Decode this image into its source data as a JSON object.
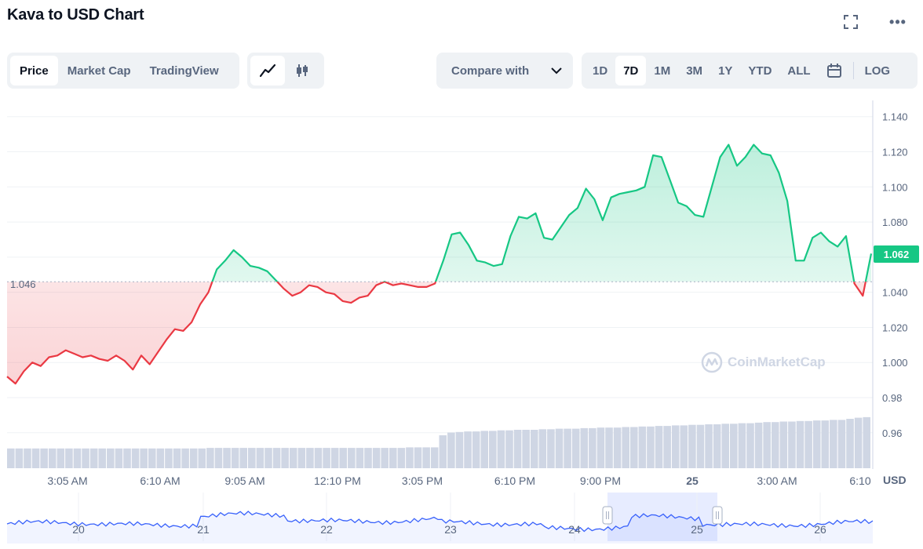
{
  "header": {
    "title": "Kava to USD Chart"
  },
  "icons": {
    "fullscreen": "fullscreen-icon",
    "more": "more-icon",
    "line": "line-chart-icon",
    "candle": "candlestick-icon",
    "chevron": "chevron-down-icon",
    "calendar": "calendar-icon"
  },
  "toolbar": {
    "views": [
      "Price",
      "Market Cap",
      "TradingView"
    ],
    "active_view": "Price",
    "compare_label": "Compare with",
    "ranges": [
      "1D",
      "7D",
      "1M",
      "3M",
      "1Y",
      "YTD",
      "ALL"
    ],
    "active_range": "7D",
    "log_label": "LOG",
    "more_glyph": "•••"
  },
  "watermark": "CoinMarketCap",
  "currency": "USD",
  "colors": {
    "up": "#16c784",
    "down": "#ea3943",
    "volume": "#cfd6e4",
    "navigator": "#3861fb"
  },
  "chart_data": {
    "type": "line",
    "reference_price": "1.046",
    "last_price": "1.062",
    "y_ticks": [
      "1.140",
      "1.120",
      "1.100",
      "1.080",
      "1.060",
      "1.040",
      "1.020",
      "1.000",
      "0.98",
      "0.96"
    ],
    "ylim": [
      0.955,
      1.143
    ],
    "x_tick_labels": [
      "3:05 AM",
      "6:10 AM",
      "9:05 AM",
      "12:10 PM",
      "3:05 PM",
      "6:10 PM",
      "9:00 PM",
      "25",
      "3:00 AM",
      "6:10"
    ],
    "navigator_labels": [
      "20",
      "21",
      "22",
      "23",
      "24",
      "25",
      "26"
    ],
    "price_series": [
      0.992,
      0.988,
      0.995,
      1.0,
      0.998,
      1.003,
      1.004,
      1.007,
      1.005,
      1.003,
      1.004,
      1.002,
      1.001,
      1.004,
      1.001,
      0.996,
      1.004,
      0.999,
      1.006,
      1.013,
      1.019,
      1.018,
      1.023,
      1.033,
      1.04,
      1.053,
      1.058,
      1.064,
      1.06,
      1.055,
      1.054,
      1.052,
      1.047,
      1.042,
      1.038,
      1.04,
      1.044,
      1.043,
      1.04,
      1.039,
      1.035,
      1.034,
      1.037,
      1.038,
      1.044,
      1.046,
      1.044,
      1.045,
      1.044,
      1.043,
      1.043,
      1.045,
      1.058,
      1.073,
      1.074,
      1.067,
      1.058,
      1.057,
      1.055,
      1.056,
      1.072,
      1.083,
      1.082,
      1.085,
      1.071,
      1.07,
      1.077,
      1.084,
      1.088,
      1.099,
      1.093,
      1.081,
      1.094,
      1.096,
      1.097,
      1.098,
      1.1,
      1.118,
      1.117,
      1.104,
      1.091,
      1.089,
      1.084,
      1.083,
      1.1,
      1.117,
      1.124,
      1.112,
      1.117,
      1.124,
      1.119,
      1.118,
      1.108,
      1.092,
      1.058,
      1.058,
      1.071,
      1.074,
      1.069,
      1.066,
      1.072,
      1.045,
      1.038,
      1.062
    ],
    "volume_series": [
      0.36,
      0.36,
      0.36,
      0.36,
      0.36,
      0.36,
      0.36,
      0.36,
      0.36,
      0.36,
      0.36,
      0.36,
      0.36,
      0.36,
      0.36,
      0.36,
      0.36,
      0.36,
      0.36,
      0.36,
      0.36,
      0.36,
      0.36,
      0.36,
      0.37,
      0.37,
      0.37,
      0.37,
      0.37,
      0.37,
      0.37,
      0.37,
      0.37,
      0.37,
      0.37,
      0.37,
      0.37,
      0.37,
      0.37,
      0.37,
      0.37,
      0.37,
      0.37,
      0.37,
      0.37,
      0.37,
      0.37,
      0.37,
      0.38,
      0.38,
      0.38,
      0.38,
      0.6,
      0.65,
      0.66,
      0.67,
      0.67,
      0.68,
      0.68,
      0.69,
      0.69,
      0.7,
      0.7,
      0.7,
      0.71,
      0.71,
      0.72,
      0.72,
      0.72,
      0.73,
      0.73,
      0.74,
      0.74,
      0.74,
      0.75,
      0.75,
      0.76,
      0.76,
      0.77,
      0.77,
      0.78,
      0.78,
      0.79,
      0.79,
      0.8,
      0.8,
      0.81,
      0.81,
      0.82,
      0.82,
      0.83,
      0.84,
      0.84,
      0.85,
      0.85,
      0.86,
      0.86,
      0.87,
      0.87,
      0.88,
      0.88,
      0.9,
      0.92,
      0.93
    ]
  }
}
